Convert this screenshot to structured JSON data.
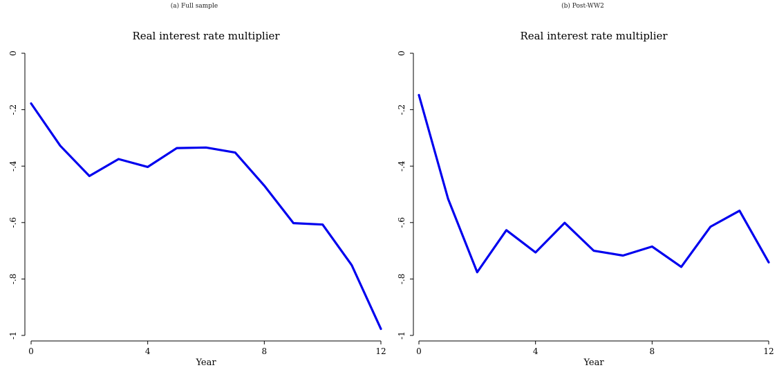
{
  "figure": {
    "panels": [
      {
        "caption": "(a) Full sample"
      },
      {
        "caption": "(b) Post-WW2"
      }
    ]
  },
  "chart_data": [
    {
      "type": "line",
      "title": "Real interest rate multiplier",
      "xlabel": "Year",
      "ylabel": "",
      "xlim": [
        0,
        12
      ],
      "ylim": [
        -1,
        0
      ],
      "xticks": [
        0,
        4,
        8,
        12
      ],
      "yticks": [
        0,
        -0.2,
        -0.4,
        -0.6,
        -0.8,
        -1
      ],
      "ytick_labels": [
        "0",
        "-.2",
        "-.4",
        "-.6",
        "-.8",
        "-1"
      ],
      "grid": false,
      "series": [
        {
          "color": "#0000ee",
          "x": [
            0,
            1,
            2,
            3,
            4,
            5,
            6,
            7,
            8,
            9,
            10,
            11,
            12
          ],
          "y": [
            -0.178,
            -0.328,
            -0.435,
            -0.375,
            -0.403,
            -0.336,
            -0.334,
            -0.352,
            -0.469,
            -0.602,
            -0.607,
            -0.751,
            -0.977
          ]
        }
      ]
    },
    {
      "type": "line",
      "title": "Real interest rate multiplier",
      "xlabel": "Year",
      "ylabel": "",
      "xlim": [
        0,
        12
      ],
      "ylim": [
        -1,
        0
      ],
      "xticks": [
        0,
        4,
        8,
        12
      ],
      "yticks": [
        0,
        -0.2,
        -0.4,
        -0.6,
        -0.8,
        -1
      ],
      "ytick_labels": [
        "0",
        "-.2",
        "-.4",
        "-.6",
        "-.8",
        "-1"
      ],
      "grid": false,
      "series": [
        {
          "color": "#0000ee",
          "x": [
            0,
            1,
            2,
            3,
            4,
            5,
            6,
            7,
            8,
            9,
            10,
            11,
            12
          ],
          "y": [
            -0.148,
            -0.516,
            -0.776,
            -0.627,
            -0.706,
            -0.601,
            -0.7,
            -0.717,
            -0.685,
            -0.757,
            -0.615,
            -0.558,
            -0.741
          ]
        }
      ]
    }
  ]
}
